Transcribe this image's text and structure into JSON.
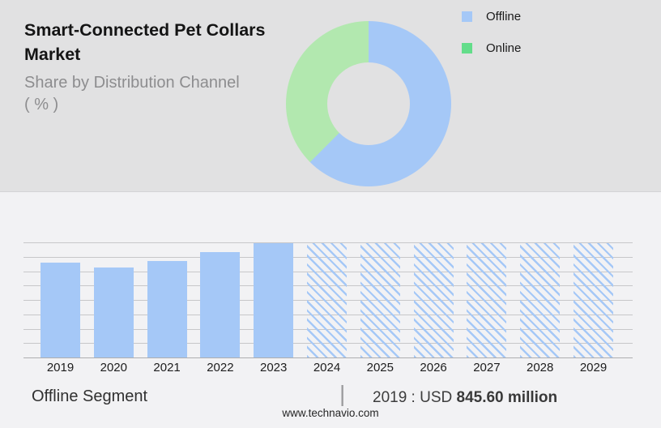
{
  "colors": {
    "top_panel_bg": "#e1e1e2",
    "chart_panel_bg": "#f2f2f4",
    "primary_blue": "#a5c8f7",
    "donut_green": "#b2e8af",
    "legend_green": "#63dd8a",
    "gridline": "#c7c7c9"
  },
  "header": {
    "title": "Smart-Connected Pet Collars Market",
    "subtitle": "Share by Distribution Channel",
    "subtitle_unit": "( % )"
  },
  "legend": {
    "items": [
      {
        "label": "Offline",
        "color": "#a5c8f7"
      },
      {
        "label": "Online",
        "color": "#63dd8a"
      }
    ]
  },
  "footer": {
    "segment_label": "Offline Segment",
    "divider": "|",
    "value_prefix": "2019 : USD ",
    "value_bold": "845.60 million",
    "website": "www.technavio.com"
  },
  "chart_data": [
    {
      "type": "pie",
      "subtype": "donut",
      "title": "Share by Distribution Channel ( % )",
      "slices": [
        {
          "label": "Offline",
          "value": 62.5,
          "color": "#a5c8f7"
        },
        {
          "label": "Online",
          "value": 37.5,
          "color": "#b2e8af"
        }
      ],
      "start_angle_deg": 0,
      "direction": "clockwise",
      "inner_radius_ratio": 0.5,
      "legend_position": "right",
      "values_labeled_on_chart": false
    },
    {
      "type": "bar",
      "title": "Offline Segment",
      "categories": [
        "2019",
        "2020",
        "2021",
        "2022",
        "2023",
        "2024",
        "2025",
        "2026",
        "2027",
        "2028",
        "2029"
      ],
      "series": [
        {
          "name": "Offline segment market size (USD million)",
          "values": [
            845.6,
            801,
            860,
            942,
            1022,
            1022,
            1022,
            1022,
            1022,
            1022,
            1022
          ]
        }
      ],
      "height_fractions": [
        0.827,
        0.784,
        0.842,
        0.922,
        1,
        1,
        1,
        1,
        1,
        1,
        1
      ],
      "hatched_forecast": [
        false,
        false,
        false,
        false,
        false,
        true,
        true,
        true,
        true,
        true,
        true
      ],
      "labeled_point": {
        "category": "2019",
        "label": "2019 : USD 845.60 million"
      },
      "bar_color": "#a5c8f7",
      "gridlines": {
        "count": 9,
        "visible": true
      },
      "y_axis_labels_visible": false,
      "xlabel": "",
      "ylabel": ""
    }
  ]
}
